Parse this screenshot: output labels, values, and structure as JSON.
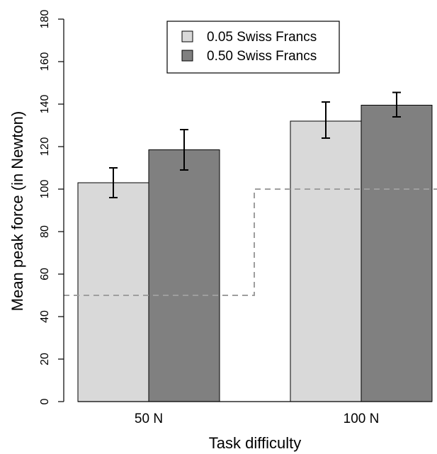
{
  "chart_data": {
    "type": "bar",
    "title": "",
    "xlabel": "Task difficulty",
    "ylabel": "Mean peak force (in Newton)",
    "ylim": [
      0,
      180
    ],
    "yticks": [
      0,
      20,
      40,
      60,
      80,
      100,
      120,
      140,
      160,
      180
    ],
    "categories": [
      "50 N",
      "100 N"
    ],
    "series": [
      {
        "name": "0.05 Swiss Francs",
        "color": "#d9d9d9",
        "values": [
          103,
          132
        ],
        "error_low": [
          96,
          124
        ],
        "error_high": [
          110,
          141
        ]
      },
      {
        "name": "0.50 Swiss Francs",
        "color": "#808080",
        "values": [
          118.5,
          139.5
        ],
        "error_low": [
          109,
          134
        ],
        "error_high": [
          128,
          145.5
        ]
      }
    ],
    "threshold_levels": [
      50,
      100
    ],
    "threshold_color": "#9e9e9e",
    "legend_position": "top-center",
    "grid": false
  }
}
